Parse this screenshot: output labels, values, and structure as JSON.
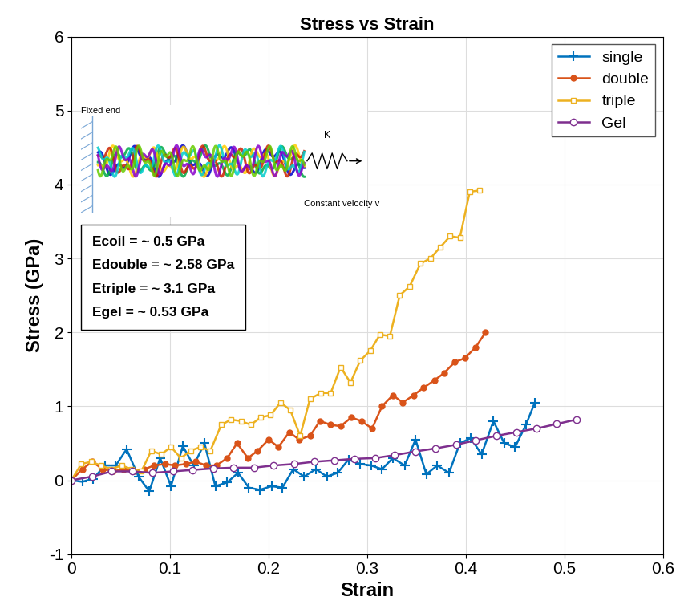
{
  "chart_data": {
    "type": "line",
    "title": "Stress vs Strain",
    "x_label": "Strain",
    "y_label": "Stress (GPa)",
    "xlim": [
      0,
      0.6
    ],
    "xticks": [
      0,
      0.1,
      0.2,
      0.3,
      0.4,
      0.5,
      0.6
    ],
    "ylim": [
      -1,
      6
    ],
    "yticks": [
      -1,
      0,
      1,
      2,
      3,
      4,
      5,
      6
    ],
    "grid": true,
    "legend": "upper right",
    "annotations": [
      "Ecoil = ~ 0.5 GPa",
      "Edouble = ~ 2.58 GPa",
      "Etriple = ~ 3.1 GPa",
      "Egel = ~ 0.53 GPa"
    ],
    "inset_labels": [
      "Fixed end",
      "K",
      "Constant velocity v"
    ],
    "series": [
      {
        "name": "single",
        "color": "#0072BD",
        "marker": "plus",
        "x": [
          0,
          0.011,
          0.022,
          0.034,
          0.045,
          0.056,
          0.068,
          0.079,
          0.09,
          0.101,
          0.113,
          0.124,
          0.135,
          0.146,
          0.158,
          0.169,
          0.18,
          0.191,
          0.203,
          0.214,
          0.225,
          0.236,
          0.248,
          0.259,
          0.27,
          0.281,
          0.293,
          0.304,
          0.315,
          0.326,
          0.338,
          0.349,
          0.36,
          0.371,
          0.383,
          0.394,
          0.405,
          0.416,
          0.428,
          0.439,
          0.45,
          0.461,
          0.47
        ],
        "values": [
          0,
          -0.02,
          0.02,
          0.2,
          0.2,
          0.42,
          0.05,
          -0.15,
          0.3,
          -0.08,
          0.46,
          0.2,
          0.5,
          -0.08,
          -0.03,
          0.1,
          -0.1,
          -0.13,
          -0.08,
          -0.1,
          0.15,
          0.05,
          0.15,
          0.05,
          0.1,
          0.28,
          0.22,
          0.2,
          0.15,
          0.3,
          0.2,
          0.55,
          0.08,
          0.2,
          0.1,
          0.5,
          0.57,
          0.35,
          0.8,
          0.5,
          0.45,
          0.75,
          1.05
        ]
      },
      {
        "name": "double",
        "color": "#D95319",
        "marker": "dot",
        "x": [
          0,
          0.011,
          0.021,
          0.032,
          0.042,
          0.053,
          0.063,
          0.074,
          0.084,
          0.095,
          0.105,
          0.116,
          0.126,
          0.137,
          0.147,
          0.158,
          0.168,
          0.179,
          0.189,
          0.2,
          0.21,
          0.221,
          0.231,
          0.242,
          0.252,
          0.263,
          0.273,
          0.284,
          0.294,
          0.305,
          0.315,
          0.326,
          0.336,
          0.347,
          0.357,
          0.368,
          0.378,
          0.389,
          0.399,
          0.41,
          0.42
        ],
        "values": [
          0,
          0.15,
          0.25,
          0.15,
          0.12,
          0.15,
          0.12,
          0.15,
          0.2,
          0.22,
          0.2,
          0.22,
          0.25,
          0.2,
          0.2,
          0.3,
          0.5,
          0.3,
          0.4,
          0.55,
          0.45,
          0.65,
          0.55,
          0.6,
          0.8,
          0.75,
          0.73,
          0.85,
          0.8,
          0.7,
          1.0,
          1.15,
          1.05,
          1.15,
          1.25,
          1.35,
          1.45,
          1.6,
          1.65,
          1.8,
          2.0
        ]
      },
      {
        "name": "triple",
        "color": "#EDB120",
        "marker": "open_square",
        "x": [
          0,
          0.01,
          0.02,
          0.03,
          0.04,
          0.051,
          0.061,
          0.071,
          0.081,
          0.091,
          0.101,
          0.111,
          0.121,
          0.131,
          0.141,
          0.152,
          0.162,
          0.172,
          0.182,
          0.192,
          0.202,
          0.212,
          0.222,
          0.232,
          0.242,
          0.253,
          0.263,
          0.273,
          0.283,
          0.293,
          0.303,
          0.313,
          0.323,
          0.333,
          0.343,
          0.354,
          0.364,
          0.374,
          0.384,
          0.394,
          0.404,
          0.414
        ],
        "values": [
          0,
          0.22,
          0.25,
          0.2,
          0.15,
          0.2,
          0.15,
          0.12,
          0.4,
          0.35,
          0.45,
          0.3,
          0.4,
          0.45,
          0.4,
          0.75,
          0.82,
          0.8,
          0.75,
          0.85,
          0.88,
          1.05,
          0.95,
          0.6,
          1.1,
          1.18,
          1.18,
          1.53,
          1.32,
          1.62,
          1.75,
          1.97,
          1.95,
          2.5,
          2.62,
          2.93,
          3.0,
          3.15,
          3.3,
          3.28,
          3.9,
          3.92
        ]
      },
      {
        "name": "Gel",
        "color": "#7E2F8E",
        "marker": "open_circle",
        "x": [
          0,
          0.021,
          0.041,
          0.062,
          0.082,
          0.103,
          0.123,
          0.144,
          0.164,
          0.185,
          0.205,
          0.226,
          0.246,
          0.267,
          0.287,
          0.308,
          0.328,
          0.349,
          0.369,
          0.39,
          0.41,
          0.431,
          0.451,
          0.472,
          0.492,
          0.512
        ],
        "values": [
          0,
          0.05,
          0.12,
          0.12,
          0.1,
          0.12,
          0.14,
          0.16,
          0.17,
          0.17,
          0.2,
          0.22,
          0.25,
          0.27,
          0.29,
          0.3,
          0.34,
          0.39,
          0.43,
          0.48,
          0.54,
          0.6,
          0.65,
          0.7,
          0.76,
          0.82
        ]
      }
    ]
  }
}
